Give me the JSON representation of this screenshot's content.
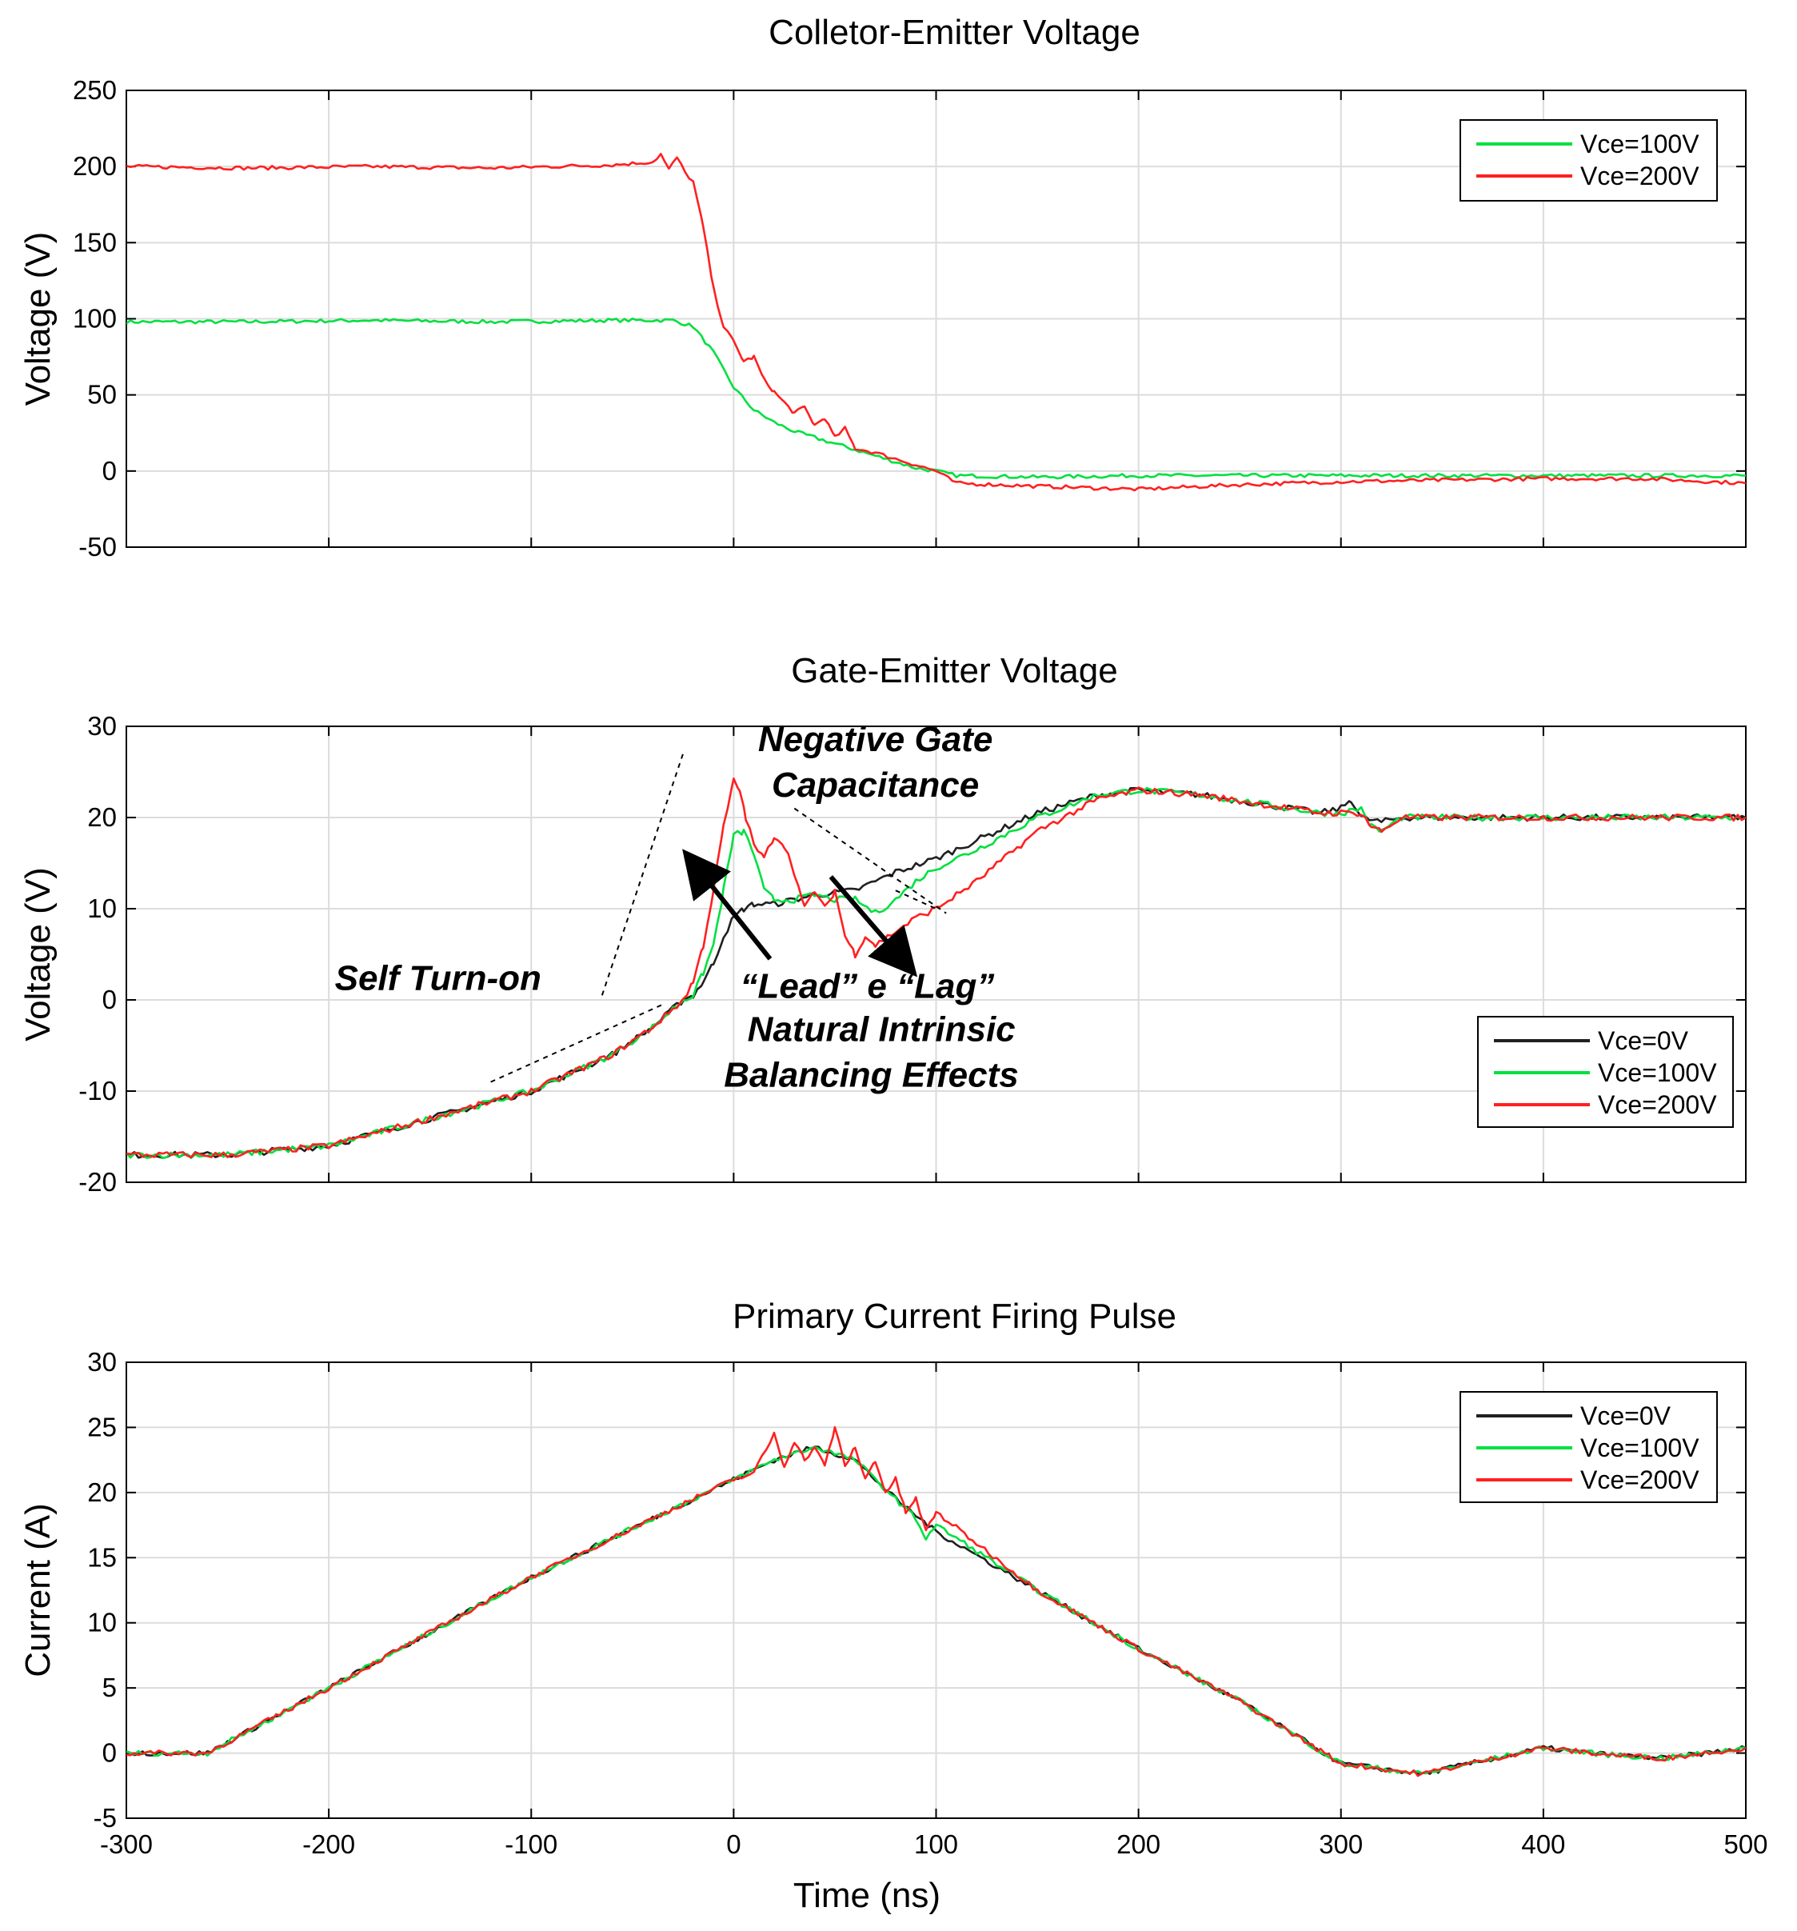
{
  "chart_data": [
    {
      "type": "line",
      "title": "Colletor-Emitter Voltage",
      "xlabel": "",
      "ylabel": "Voltage (V)",
      "xlim": [
        -300,
        500
      ],
      "ylim": [
        -50,
        250
      ],
      "xticks": [
        -300,
        -200,
        -100,
        0,
        100,
        200,
        300,
        400,
        500
      ],
      "yticks": [
        -50,
        0,
        50,
        100,
        150,
        200,
        250
      ],
      "grid": true,
      "legend_position": "top-right",
      "series": [
        {
          "name": "Vce=100V",
          "color": "#00e040",
          "x": [
            -300,
            -240,
            -180,
            -120,
            -60,
            -30,
            -20,
            -10,
            0,
            10,
            20,
            30,
            40,
            50,
            60,
            70,
            80,
            90,
            100,
            110,
            150,
            200,
            300,
            400,
            500
          ],
          "y": [
            98,
            98,
            99,
            98,
            99,
            99,
            95,
            78,
            55,
            40,
            32,
            26,
            22,
            18,
            14,
            10,
            6,
            2,
            0,
            -3,
            -4,
            -3,
            -3,
            -3,
            -3
          ]
        },
        {
          "name": "Vce=200V",
          "color": "#ff2020",
          "x": [
            -300,
            -240,
            -180,
            -120,
            -60,
            -40,
            -36,
            -32,
            -28,
            -24,
            -20,
            -15,
            -10,
            -5,
            0,
            5,
            10,
            15,
            20,
            25,
            30,
            35,
            40,
            45,
            50,
            55,
            60,
            70,
            80,
            90,
            100,
            110,
            150,
            200,
            250,
            300,
            350,
            400,
            450,
            500
          ],
          "y": [
            200,
            199,
            200,
            199,
            201,
            203,
            208,
            198,
            206,
            196,
            190,
            160,
            120,
            95,
            85,
            72,
            75,
            60,
            52,
            45,
            38,
            42,
            30,
            35,
            22,
            28,
            15,
            12,
            8,
            4,
            0,
            -8,
            -10,
            -12,
            -9,
            -7,
            -6,
            -5,
            -5,
            -8
          ]
        }
      ]
    },
    {
      "type": "line",
      "title": "Gate-Emitter Voltage",
      "xlabel": "",
      "ylabel": "Voltage (V)",
      "xlim": [
        -300,
        500
      ],
      "ylim": [
        -20,
        30
      ],
      "xticks": [
        -300,
        -200,
        -100,
        0,
        100,
        200,
        300,
        400,
        500
      ],
      "yticks": [
        -20,
        -10,
        0,
        10,
        20,
        30
      ],
      "grid": true,
      "legend_position": "bottom-right",
      "annotations": [
        {
          "text": "Negative Gate",
          "x": 70,
          "y": 27.3
        },
        {
          "text": "Capacitance",
          "x": 70,
          "y": 22.3
        },
        {
          "text": "Self Turn-on",
          "x": -95,
          "y": 1.1
        },
        {
          "text": "“Lead” e “Lag”",
          "x": 66,
          "y": 0.2
        },
        {
          "text": "Natural Intrinsic",
          "x": 73,
          "y": -4.5
        },
        {
          "text": "Balancing Effects",
          "x": 68,
          "y": -9.5
        }
      ],
      "series": [
        {
          "name": "Vce=0V",
          "color": "#202020",
          "x": [
            -300,
            -250,
            -200,
            -150,
            -100,
            -60,
            -40,
            -25,
            -20,
            -15,
            -10,
            -5,
            0,
            5,
            10,
            20,
            40,
            60,
            80,
            100,
            120,
            150,
            180,
            200,
            230,
            260,
            290,
            300,
            305,
            310,
            320,
            330,
            360,
            400,
            450,
            500
          ],
          "y": [
            -17,
            -17,
            -16,
            -13,
            -10,
            -6,
            -3,
            0,
            0.5,
            2,
            4,
            7,
            9,
            10,
            10.5,
            10.5,
            11.5,
            12,
            14,
            15.5,
            17.5,
            20.5,
            22.5,
            23,
            22.5,
            21.5,
            20.5,
            21,
            22,
            20,
            19.5,
            20,
            20,
            20,
            20,
            20
          ]
        },
        {
          "name": "Vce=100V",
          "color": "#00e040",
          "x": [
            -300,
            -250,
            -200,
            -150,
            -100,
            -60,
            -40,
            -25,
            -20,
            -15,
            -10,
            -5,
            0,
            5,
            10,
            15,
            20,
            30,
            40,
            50,
            60,
            70,
            80,
            90,
            100,
            120,
            150,
            180,
            200,
            230,
            260,
            290,
            300,
            310,
            315,
            320,
            330,
            360,
            400,
            450,
            500
          ],
          "y": [
            -17,
            -17,
            -16,
            -13,
            -10,
            -6,
            -3,
            0,
            0.5,
            3,
            6,
            12,
            18,
            18.5,
            16,
            12,
            11,
            11,
            11.5,
            11,
            11,
            9.5,
            11,
            13,
            14.5,
            16.5,
            20,
            22.5,
            23,
            22.5,
            21.5,
            20.5,
            20.5,
            21,
            19,
            18.5,
            20,
            20,
            20,
            20,
            20
          ]
        },
        {
          "name": "Vce=200V",
          "color": "#ff2020",
          "x": [
            -300,
            -250,
            -200,
            -150,
            -100,
            -60,
            -40,
            -25,
            -20,
            -15,
            -10,
            -5,
            0,
            3,
            6,
            10,
            15,
            20,
            25,
            30,
            35,
            40,
            45,
            50,
            55,
            60,
            65,
            70,
            80,
            90,
            100,
            120,
            150,
            180,
            200,
            230,
            260,
            290,
            310,
            315,
            320,
            330,
            360,
            400,
            450,
            500
          ],
          "y": [
            -17,
            -17,
            -16,
            -13,
            -10,
            -6,
            -3,
            0,
            2,
            6,
            12,
            19,
            24,
            23,
            20,
            17,
            15.5,
            18,
            17,
            14,
            10,
            12,
            10,
            12,
            7,
            5,
            7,
            6,
            7.5,
            9,
            10,
            13,
            18.5,
            22,
            23,
            22.5,
            21.5,
            20.5,
            20.5,
            19,
            18.5,
            20,
            20,
            20,
            20,
            20
          ]
        }
      ]
    },
    {
      "type": "line",
      "title": "Primary Current Firing Pulse",
      "xlabel": "Time (ns)",
      "ylabel": "Current (A)",
      "xlim": [
        -300,
        500
      ],
      "ylim": [
        -5,
        30
      ],
      "xticks": [
        -300,
        -200,
        -100,
        0,
        100,
        200,
        300,
        400,
        500
      ],
      "yticks": [
        -5,
        0,
        5,
        10,
        15,
        20,
        25,
        30
      ],
      "grid": true,
      "legend_position": "top-right",
      "series": [
        {
          "name": "Vce=0V",
          "color": "#202020",
          "x": [
            -300,
            -260,
            -200,
            -100,
            0,
            20,
            40,
            60,
            80,
            100,
            150,
            200,
            250,
            300,
            340,
            370,
            400,
            430,
            460,
            500
          ],
          "y": [
            0,
            0,
            5,
            13.5,
            21,
            22.5,
            23.5,
            22.5,
            19.5,
            17,
            12.5,
            8,
            4,
            -0.8,
            -1.6,
            -0.6,
            0.4,
            -0.1,
            -0.4,
            0.4
          ]
        },
        {
          "name": "Vce=100V",
          "color": "#00e040",
          "x": [
            -300,
            -260,
            -200,
            -100,
            0,
            20,
            40,
            60,
            80,
            90,
            95,
            100,
            110,
            150,
            200,
            250,
            300,
            340,
            370,
            400,
            430,
            460,
            500
          ],
          "y": [
            0,
            0,
            5,
            13.5,
            21,
            22.5,
            23.5,
            22.5,
            19.5,
            18,
            16.5,
            17.5,
            16.5,
            12.5,
            8,
            4,
            -0.8,
            -1.6,
            -0.6,
            0.4,
            -0.1,
            -0.4,
            0.4
          ]
        },
        {
          "name": "Vce=200V",
          "color": "#ff2020",
          "x": [
            -300,
            -260,
            -200,
            -100,
            0,
            10,
            20,
            25,
            30,
            35,
            40,
            45,
            50,
            55,
            60,
            65,
            70,
            75,
            80,
            85,
            90,
            95,
            100,
            150,
            200,
            250,
            300,
            340,
            370,
            400,
            430,
            460,
            500
          ],
          "y": [
            0,
            0,
            5,
            13.5,
            21,
            21.5,
            24.5,
            22,
            24,
            22.5,
            23.5,
            22,
            25,
            22,
            23.5,
            21,
            22.5,
            20,
            21,
            18.5,
            19.5,
            17,
            18.5,
            12.5,
            8,
            4,
            -0.8,
            -1.6,
            -0.6,
            0.4,
            -0.1,
            -0.4,
            0.4
          ]
        }
      ]
    }
  ]
}
